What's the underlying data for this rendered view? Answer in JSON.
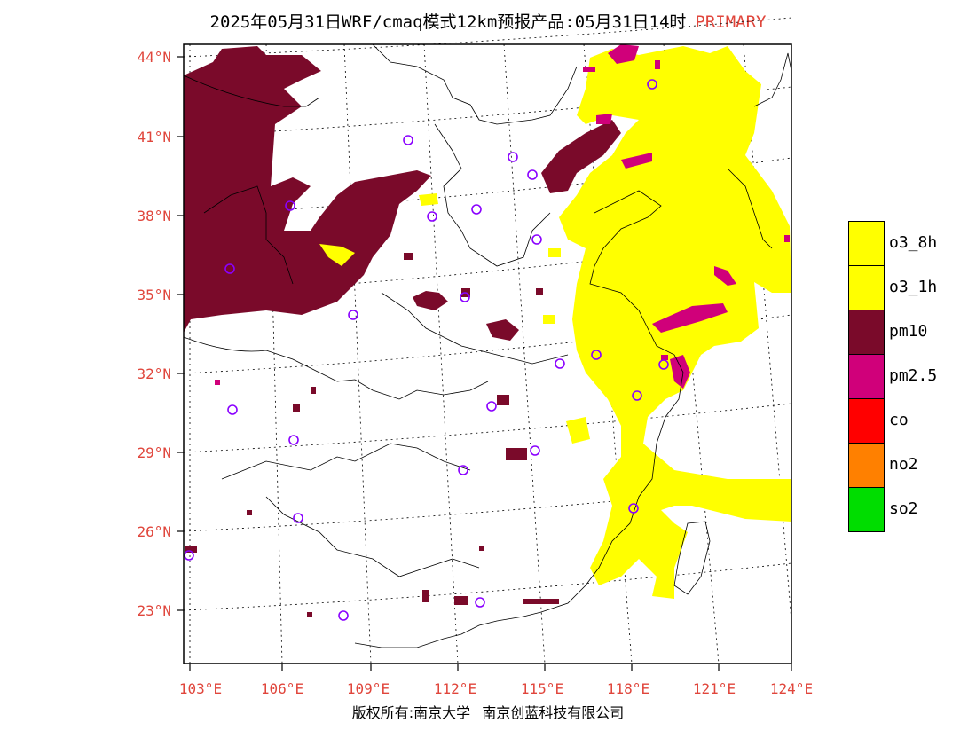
{
  "title": {
    "main": "2025年05月31日WRF/cmaq模式12km预报产品:05月31日14时",
    "tag": "PRIMARY"
  },
  "axes": {
    "lat_labels": [
      "44°N",
      "41°N",
      "38°N",
      "35°N",
      "32°N",
      "29°N",
      "26°N",
      "23°N"
    ],
    "lon_labels": [
      "103°E",
      "106°E",
      "109°E",
      "112°E",
      "115°E",
      "118°E",
      "121°E",
      "124°E"
    ]
  },
  "legend": [
    {
      "label": "o3_8h",
      "color": "#ffff00"
    },
    {
      "label": "o3_1h",
      "color": "#ffff00"
    },
    {
      "label": "pm10",
      "color": "#7a0a2a"
    },
    {
      "label": "pm2.5",
      "color": "#d0007a"
    },
    {
      "label": "co",
      "color": "#ff0000"
    },
    {
      "label": "no2",
      "color": "#ff8000"
    },
    {
      "label": "so2",
      "color": "#00dd00"
    }
  ],
  "footer": {
    "left": "版权所有:南京大学",
    "right": "南京创蓝科技有限公司"
  },
  "colors": {
    "accent": "#e0463c",
    "station_marker": "#8a00ff"
  }
}
